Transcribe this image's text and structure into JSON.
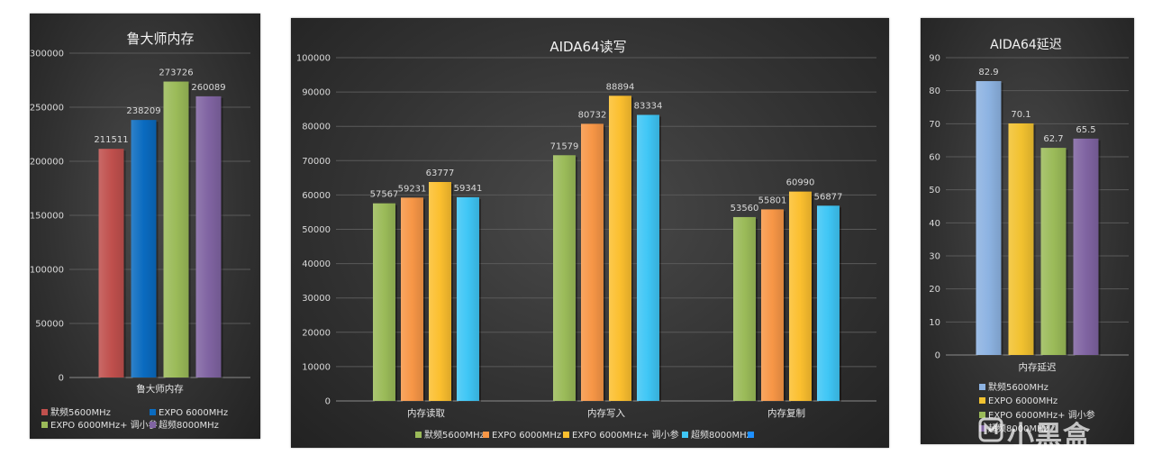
{
  "chart_data": [
    {
      "type": "bar",
      "title": "鲁大师内存",
      "categories": [
        "鲁大师内存"
      ],
      "ylim": [
        0,
        300000
      ],
      "yticks": [
        0,
        50000,
        100000,
        150000,
        200000,
        250000,
        300000
      ],
      "grid": true,
      "legend_position": "bottom",
      "series": [
        {
          "name": "默频5600MHz",
          "values": [
            211511
          ],
          "color": "#c0504d"
        },
        {
          "name": "EXPO 6000MHz",
          "values": [
            238209
          ],
          "color": "#0a6bc0"
        },
        {
          "name": "EXPO 6000MHz+ 调小参",
          "values": [
            273726
          ],
          "color": "#9bbb59"
        },
        {
          "name": "超频8000MHz",
          "values": [
            260089
          ],
          "color": "#8064a2"
        }
      ]
    },
    {
      "type": "bar",
      "title": "AIDA64读写",
      "categories": [
        "内存读取",
        "内存写入",
        "内存复制"
      ],
      "ylim": [
        0,
        100000
      ],
      "yticks": [
        0,
        10000,
        20000,
        30000,
        40000,
        50000,
        60000,
        70000,
        80000,
        90000,
        100000
      ],
      "grid": true,
      "legend_position": "bottom",
      "series": [
        {
          "name": "默频5600MHz",
          "values": [
            57567,
            71579,
            53560
          ],
          "color": "#9bbb59"
        },
        {
          "name": "EXPO 6000MHz",
          "values": [
            59231,
            80732,
            55801
          ],
          "color": "#f79646"
        },
        {
          "name": "EXPO 6000MHz+ 调小参",
          "values": [
            63777,
            88894,
            60990
          ],
          "color": "#fbbf2f"
        },
        {
          "name": "超频8000MHz",
          "values": [
            59341,
            83334,
            56877
          ],
          "color": "#3fc6f5"
        }
      ],
      "extra_legend_color": "#1e90ff"
    },
    {
      "type": "bar",
      "title": "AIDA64延迟",
      "categories": [
        "内存延迟"
      ],
      "ylim": [
        0,
        90
      ],
      "yticks": [
        0,
        10,
        20,
        30,
        40,
        50,
        60,
        70,
        80,
        90
      ],
      "grid": true,
      "legend_position": "bottom",
      "series": [
        {
          "name": "默频5600MHz",
          "values": [
            82.9
          ],
          "color": "#8db3e2"
        },
        {
          "name": "EXPO 6000MHz",
          "values": [
            70.1
          ],
          "color": "#f2c230"
        },
        {
          "name": "EXPO 6000MHz+ 调小参",
          "values": [
            62.7
          ],
          "color": "#9bbb59"
        },
        {
          "name": "超频8000MHz",
          "values": [
            65.5
          ],
          "color": "#8064a2"
        }
      ]
    }
  ],
  "watermark": {
    "text": "小黑盒"
  }
}
